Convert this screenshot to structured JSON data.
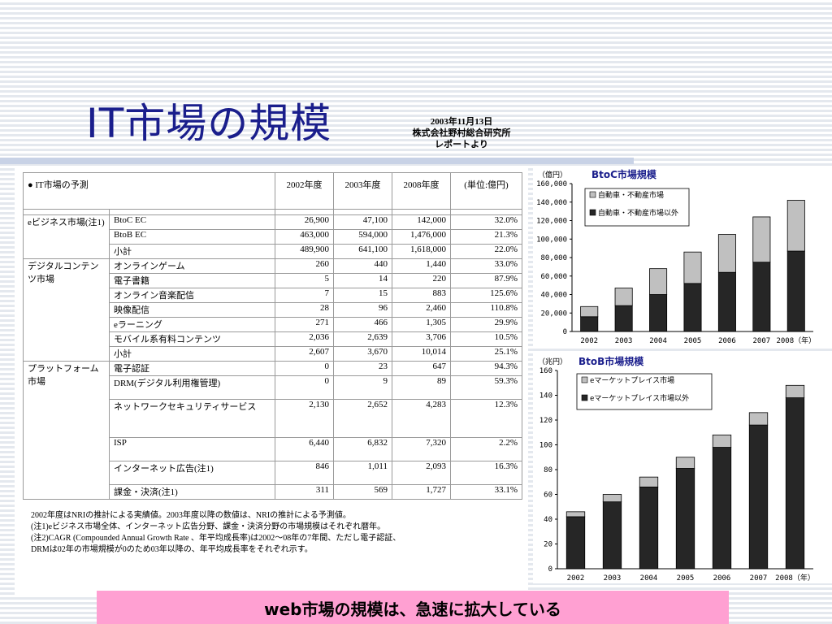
{
  "header": {
    "title": "IT市場の規模",
    "source_date": "2003年11月13日",
    "source_org": "株式会社野村総合研究所",
    "source_note": "レポートより"
  },
  "table": {
    "corner_label": "● IT市場の予測",
    "col_2002": "2002年度",
    "col_2003": "2003年度",
    "col_2008": "2008年度",
    "col_unit": "(単位:億円)",
    "groups": [
      {
        "label": "eビジネス市場(注1)",
        "rows": [
          {
            "item": "BtoC EC",
            "v2002": "26,900",
            "v2003": "47,100",
            "v2008": "142,000",
            "cagr": "32.0%"
          },
          {
            "item": "BtoB EC",
            "v2002": "463,000",
            "v2003": "594,000",
            "v2008": "1,476,000",
            "cagr": "21.3%"
          },
          {
            "item": "小計",
            "v2002": "489,900",
            "v2003": "641,100",
            "v2008": "1,618,000",
            "cagr": "22.0%"
          }
        ]
      },
      {
        "label": "デジタルコンテンツ市場",
        "rows": [
          {
            "item": "オンラインゲーム",
            "v2002": "260",
            "v2003": "440",
            "v2008": "1,440",
            "cagr": "33.0%"
          },
          {
            "item": "電子書籍",
            "v2002": "5",
            "v2003": "14",
            "v2008": "220",
            "cagr": "87.9%"
          },
          {
            "item": "オンライン音楽配信",
            "v2002": "7",
            "v2003": "15",
            "v2008": "883",
            "cagr": "125.6%"
          },
          {
            "item": "映像配信",
            "v2002": "28",
            "v2003": "96",
            "v2008": "2,460",
            "cagr": "110.8%"
          },
          {
            "item": "eラーニング",
            "v2002": "271",
            "v2003": "466",
            "v2008": "1,305",
            "cagr": "29.9%"
          },
          {
            "item": "モバイル系有料コンテンツ",
            "v2002": "2,036",
            "v2003": "2,639",
            "v2008": "3,706",
            "cagr": "10.5%"
          },
          {
            "item": "小計",
            "v2002": "2,607",
            "v2003": "3,670",
            "v2008": "10,014",
            "cagr": "25.1%"
          }
        ]
      },
      {
        "label": "プラットフォーム市場",
        "rows": [
          {
            "item": "電子認証",
            "v2002": "0",
            "v2003": "23",
            "v2008": "647",
            "cagr": "94.3%"
          },
          {
            "item": "DRM(デジタル利用権管理)",
            "v2002": "0",
            "v2003": "9",
            "v2008": "89",
            "cagr": "59.3%"
          },
          {
            "item": "ネットワークセキュリティサービス",
            "v2002": "2,130",
            "v2003": "2,652",
            "v2008": "4,283",
            "cagr": "12.3%"
          },
          {
            "item": "ISP",
            "v2002": "6,440",
            "v2003": "6,832",
            "v2008": "7,320",
            "cagr": "2.2%"
          },
          {
            "item": "インターネット広告(注1)",
            "v2002": "846",
            "v2003": "1,011",
            "v2008": "2,093",
            "cagr": "16.3%"
          },
          {
            "item": "課金・決済(注1)",
            "v2002": "311",
            "v2003": "569",
            "v2008": "1,727",
            "cagr": "33.1%"
          }
        ]
      }
    ],
    "notes": [
      "2002年度はNRIの推計による実績値。2003年度以降の数値は、NRIの推計による予測値。",
      "(注1)eビジネス市場全体、インターネット広告分野、課金・決済分野の市場規模はそれぞれ暦年。",
      "(注2)CAGR (Compounded Annual Growth Rate 、年平均成長率)は2002〜08年の7年間、ただし電子認証、",
      "DRMは02年の市場規模が0のため03年以降の、年平均成長率をそれぞれ示す。"
    ]
  },
  "chart_data": [
    {
      "type": "bar",
      "stacked": true,
      "title": "BtoC市場規模",
      "unit_label": "（億円）",
      "x_unit_label": "（年）",
      "categories": [
        "2002",
        "2003",
        "2004",
        "2005",
        "2006",
        "2007",
        "2008"
      ],
      "series": [
        {
          "name": "自動車・不動産市場以外",
          "color": "#262626",
          "values": [
            16000,
            28000,
            40000,
            52000,
            64000,
            75000,
            87000
          ]
        },
        {
          "name": "自動車・不動産市場",
          "color": "#c0c0c0",
          "values": [
            11000,
            19000,
            28000,
            34000,
            41000,
            49000,
            55000
          ]
        }
      ],
      "ylim": [
        0,
        160000
      ],
      "yticks": [
        0,
        20000,
        40000,
        60000,
        80000,
        100000,
        120000,
        140000,
        160000
      ],
      "ytick_labels": [
        "0",
        "20,000",
        "40,000",
        "60,000",
        "80,000",
        "100,000",
        "120,000",
        "140,000",
        "160,000"
      ],
      "legend_position": "top-left"
    },
    {
      "type": "bar",
      "stacked": true,
      "title": "BtoB市場規模",
      "unit_label": "（兆円）",
      "x_unit_label": "（年）",
      "categories": [
        "2002",
        "2003",
        "2004",
        "2005",
        "2006",
        "2007",
        "2008"
      ],
      "series": [
        {
          "name": "eマーケットプレイス市場以外",
          "color": "#262626",
          "values": [
            42,
            54,
            66,
            81,
            98,
            116,
            138
          ]
        },
        {
          "name": "eマーケットプレイス市場",
          "color": "#c0c0c0",
          "values": [
            4,
            6,
            8,
            9,
            10,
            10,
            10
          ]
        }
      ],
      "ylim": [
        0,
        160
      ],
      "yticks": [
        0,
        20,
        40,
        60,
        80,
        100,
        120,
        140,
        160
      ],
      "ytick_labels": [
        "0",
        "20",
        "40",
        "60",
        "80",
        "100",
        "120",
        "140",
        "160"
      ],
      "legend_position": "top-left"
    }
  ],
  "banner": {
    "text": "web市場の規模は、急速に拡大している"
  }
}
